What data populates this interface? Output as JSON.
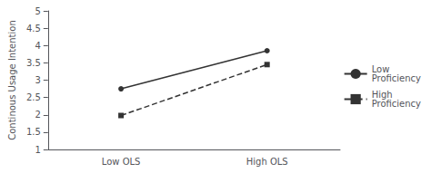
{
  "chart_data": {
    "type": "line",
    "categories": [
      "Low OLS",
      "High OLS"
    ],
    "series": [
      {
        "name": "Low\nProficiency",
        "color": "#333333",
        "marker": "circle",
        "line_style": "solid",
        "values": [
          2.75,
          3.85
        ]
      },
      {
        "name": "High\nProficiency",
        "color": "#333333",
        "marker": "square",
        "line_style": "dashed",
        "values": [
          1.98,
          3.45
        ]
      }
    ],
    "ylabel": "Continous Usage Intention",
    "ylim": [
      1,
      5
    ],
    "yticks": [
      1,
      1.5,
      2,
      2.5,
      3,
      3.5,
      4,
      4.5,
      5
    ],
    "grid": false,
    "legend": "right"
  }
}
